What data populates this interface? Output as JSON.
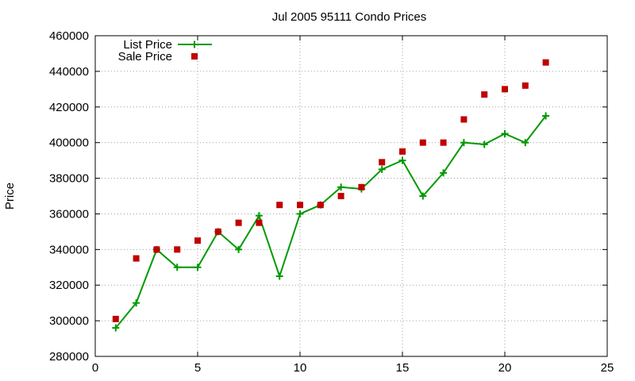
{
  "chart_data": {
    "type": "line",
    "title": "Jul 2005 95111 Condo Prices",
    "xlabel": "",
    "ylabel": "Price",
    "xlim": [
      0,
      25
    ],
    "ylim": [
      280000,
      460000
    ],
    "x_ticks": [
      "0",
      "5",
      "10",
      "15",
      "20",
      "25"
    ],
    "y_ticks": [
      "280000",
      "300000",
      "320000",
      "340000",
      "360000",
      "380000",
      "400000",
      "420000",
      "440000",
      "460000"
    ],
    "grid": true,
    "legend_position": "top-left",
    "x": [
      1,
      2,
      3,
      4,
      5,
      6,
      7,
      8,
      9,
      10,
      11,
      12,
      13,
      14,
      15,
      16,
      17,
      18,
      19,
      20,
      21,
      22
    ],
    "series": [
      {
        "name": "List Price",
        "style": "lines+crosses",
        "color": "#009900",
        "values": [
          296000,
          310000,
          340000,
          330000,
          330000,
          350000,
          340000,
          359000,
          325000,
          360000,
          365000,
          375000,
          374000,
          385000,
          390000,
          370000,
          383000,
          400000,
          399000,
          405000,
          400000,
          415000
        ]
      },
      {
        "name": "Sale Price",
        "style": "squares",
        "color": "#c00000",
        "values": [
          301000,
          335000,
          340000,
          340000,
          345000,
          350000,
          355000,
          355000,
          365000,
          365000,
          365000,
          370000,
          375000,
          389000,
          395000,
          400000,
          400000,
          413000,
          427000,
          430000,
          432000,
          445000
        ]
      }
    ]
  }
}
